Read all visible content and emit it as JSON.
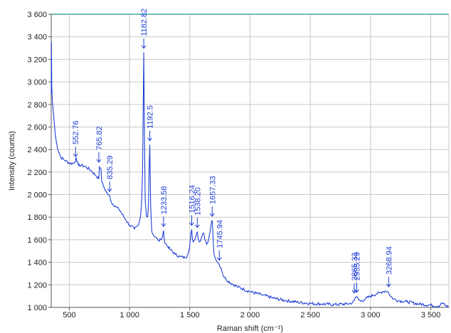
{
  "chart_data": {
    "type": "line",
    "title": "",
    "xlabel": "Raman shift (cm⁻¹)",
    "ylabel": "Intensity (counts)",
    "xlim": [
      350,
      3650
    ],
    "ylim": [
      1000,
      3600
    ],
    "x_ticks": [
      500,
      1000,
      1500,
      2000,
      2500,
      3000,
      3500
    ],
    "x_tick_labels": [
      "500",
      "1 000",
      "1 500",
      "2 000",
      "2 500",
      "3 000",
      "3 500"
    ],
    "y_ticks": [
      1000,
      1200,
      1400,
      1600,
      1800,
      2000,
      2200,
      2400,
      2600,
      2800,
      3000,
      3200,
      3400,
      3600
    ],
    "y_tick_labels": [
      "1 000",
      "1 200",
      "1 400",
      "1 600",
      "1 800",
      "2 000",
      "2 200",
      "2 400",
      "2 600",
      "2 800",
      "3 000",
      "3 200",
      "3 400",
      "3 600"
    ],
    "grid": true,
    "colors": {
      "series": "#1f3fd6",
      "grid": "#c8c8c8",
      "axis": "#555555",
      "top_border": "#3aaa9a"
    },
    "series": [
      {
        "name": "",
        "x": [
          350,
          352,
          355,
          360,
          370,
          385,
          400,
          430,
          470,
          500,
          530,
          552,
          556,
          575,
          600,
          640,
          680,
          720,
          745,
          750,
          762,
          770,
          790,
          820,
          835,
          850,
          880,
          920,
          960,
          1000,
          1040,
          1070,
          1090,
          1100,
          1108,
          1113,
          1118,
          1124,
          1130,
          1140,
          1150,
          1157,
          1163,
          1168,
          1175,
          1185,
          1200,
          1220,
          1240,
          1260,
          1275,
          1282,
          1290,
          1310,
          1340,
          1380,
          1420,
          1460,
          1480,
          1500,
          1510,
          1516,
          1522,
          1530,
          1545,
          1555,
          1562,
          1570,
          1580,
          1590,
          1600,
          1615,
          1625,
          1640,
          1655,
          1670,
          1680,
          1686,
          1692,
          1700,
          1715,
          1730,
          1745,
          1760,
          1775,
          1800,
          1850,
          1900,
          1950,
          2000,
          2100,
          2200,
          2300,
          2400,
          2500,
          2600,
          2700,
          2800,
          2850,
          2865,
          2875,
          2885,
          2900,
          2920,
          2950,
          3000,
          3050,
          3080,
          3100,
          3120,
          3140,
          3150,
          3165,
          3190,
          3230,
          3300,
          3400,
          3500,
          3560,
          3600,
          3620,
          3650
        ],
        "y": [
          2900,
          3350,
          2950,
          2820,
          2700,
          2520,
          2420,
          2330,
          2300,
          2280,
          2275,
          2300,
          2330,
          2260,
          2260,
          2245,
          2215,
          2170,
          2140,
          2250,
          2230,
          2110,
          2060,
          2000,
          1990,
          1930,
          1900,
          1860,
          1790,
          1730,
          1695,
          1725,
          1800,
          1920,
          2200,
          2700,
          3260,
          2500,
          1950,
          1810,
          1800,
          1900,
          2250,
          2440,
          1900,
          1670,
          1640,
          1620,
          1590,
          1600,
          1640,
          1680,
          1580,
          1550,
          1510,
          1470,
          1450,
          1440,
          1460,
          1550,
          1660,
          1690,
          1600,
          1580,
          1610,
          1650,
          1670,
          1600,
          1580,
          1590,
          1630,
          1660,
          1600,
          1560,
          1600,
          1680,
          1760,
          1770,
          1650,
          1480,
          1430,
          1400,
          1380,
          1350,
          1290,
          1250,
          1210,
          1180,
          1160,
          1140,
          1110,
          1080,
          1060,
          1045,
          1035,
          1030,
          1025,
          1030,
          1040,
          1060,
          1090,
          1095,
          1070,
          1055,
          1070,
          1100,
          1120,
          1130,
          1140,
          1145,
          1140,
          1130,
          1100,
          1075,
          1060,
          1050,
          1030,
          1020,
          1010,
          1040,
          1015,
          1005
        ]
      }
    ],
    "annotations": [
      {
        "label": "552.76",
        "x": 552,
        "y": 2300
      },
      {
        "label": "765.82",
        "x": 745,
        "y": 2250
      },
      {
        "label": "835.29",
        "x": 835,
        "y": 1990
      },
      {
        "label": "1182.82",
        "x": 1118,
        "y": 3260
      },
      {
        "label": "1192.5",
        "x": 1168,
        "y": 2440
      },
      {
        "label": "1233.58",
        "x": 1282,
        "y": 1680
      },
      {
        "label": "1516.24",
        "x": 1516,
        "y": 1690
      },
      {
        "label": "1538.20",
        "x": 1562,
        "y": 1670
      },
      {
        "label": "1657.33",
        "x": 1686,
        "y": 1770
      },
      {
        "label": "1745.94",
        "x": 1745,
        "y": 1380
      },
      {
        "label": "2865.33",
        "x": 2865,
        "y": 1090
      },
      {
        "label": "2935.29",
        "x": 2885,
        "y": 1095
      },
      {
        "label": "3268.94",
        "x": 3150,
        "y": 1145
      }
    ]
  }
}
